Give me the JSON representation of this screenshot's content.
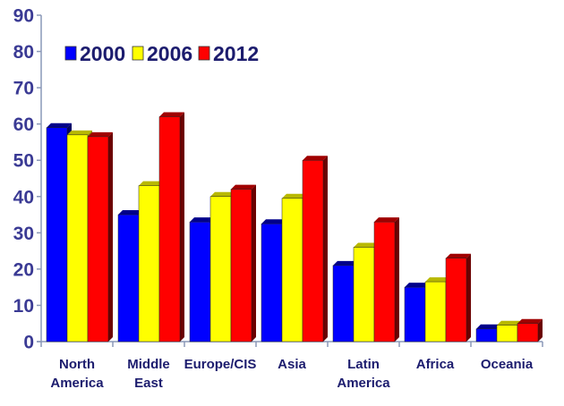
{
  "chart_data": {
    "type": "bar",
    "style": "3d-clustered-column",
    "title": "",
    "xlabel": "",
    "ylabel": "",
    "categories": [
      [
        "North",
        "America"
      ],
      [
        "Middle",
        "East"
      ],
      [
        "Europe/CIS"
      ],
      [
        "Asia"
      ],
      [
        "Latin",
        "America"
      ],
      [
        "Africa"
      ],
      [
        "Oceania"
      ]
    ],
    "category_names": [
      "North America",
      "Middle East",
      "Europe/CIS",
      "Asia",
      "Latin America",
      "Africa",
      "Oceania"
    ],
    "series": [
      {
        "name": "2000",
        "color": "#0000ff",
        "top": "#00008b",
        "side": "#000066",
        "values": [
          59,
          35,
          33,
          32.5,
          21,
          15,
          3.5
        ]
      },
      {
        "name": "2006",
        "color": "#ffff00",
        "top": "#b8b800",
        "side": "#8a8a00",
        "values": [
          57,
          43,
          40,
          39.5,
          26,
          16.5,
          4.5
        ]
      },
      {
        "name": "2012",
        "color": "#ff0000",
        "top": "#a00000",
        "side": "#6b0000",
        "values": [
          56.5,
          62,
          42,
          50,
          33,
          23,
          5
        ]
      }
    ],
    "ylim": [
      0,
      90
    ],
    "yticks": [
      0,
      10,
      20,
      30,
      40,
      50,
      60,
      70,
      80,
      90
    ],
    "grid": false,
    "legend_position": "top-left-inside"
  }
}
